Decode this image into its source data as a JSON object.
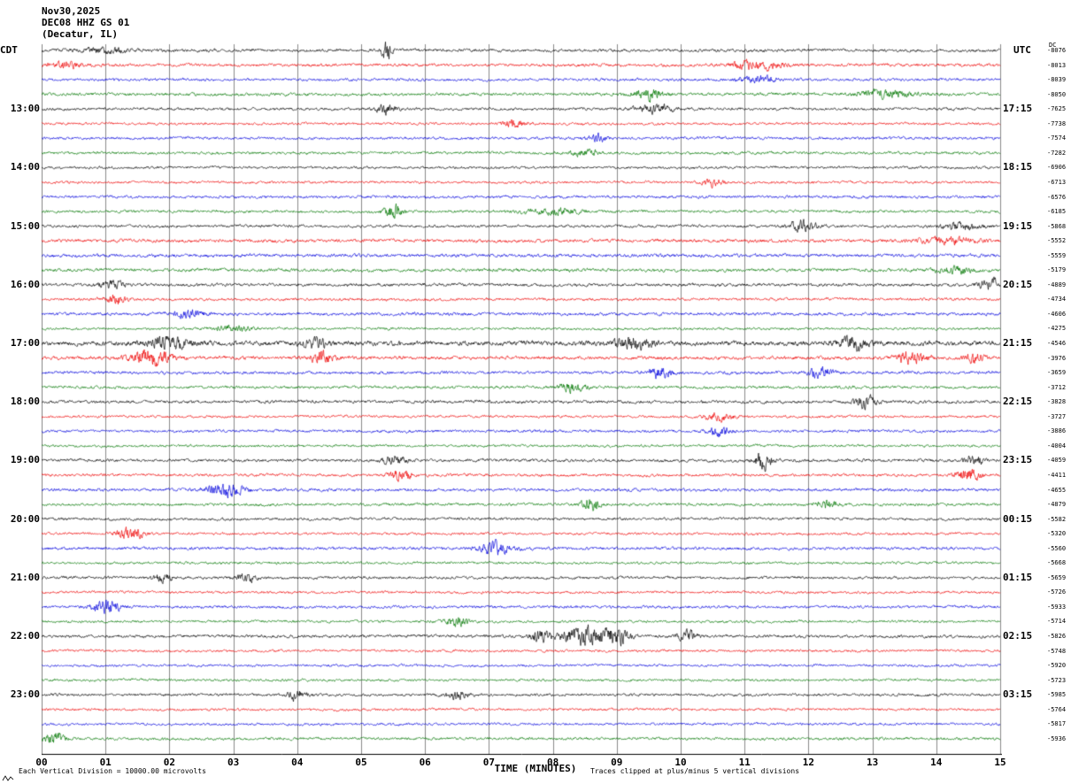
{
  "header": {
    "date": "Nov30,2025",
    "station": "DEC08 HHZ GS 01",
    "location": "(Decatur, IL)"
  },
  "axis": {
    "left_tz": "CDT",
    "right_tz": "UTC",
    "dc_header": "DC",
    "x_title": "TIME (MINUTES)",
    "x_ticks": [
      "00",
      "01",
      "02",
      "03",
      "04",
      "05",
      "06",
      "07",
      "08",
      "09",
      "10",
      "11",
      "12",
      "13",
      "14",
      "15"
    ]
  },
  "footer": {
    "scale_note": "Each Vertical Division = 10000.00 microvolts",
    "clip_note": "Traces clipped at plus/minus 5 vertical divisions"
  },
  "chart_data": {
    "type": "line",
    "subtype": "helicorder",
    "n_rows": 48,
    "minutes_per_row": 15,
    "rows_per_hour": 4,
    "x_range_minutes": [
      0,
      15
    ],
    "grid_on": true,
    "grid_color": "#8a8a8a",
    "row_colors_cycle": [
      "black",
      "red",
      "blue",
      "green"
    ],
    "palette": {
      "black": "#000000",
      "red": "#ee0000",
      "blue": "#0000dd",
      "green": "#007700"
    },
    "hour_labels": [
      {
        "row": 4,
        "cdt": "13:00",
        "utc": "17:15"
      },
      {
        "row": 8,
        "cdt": "14:00",
        "utc": "18:15"
      },
      {
        "row": 12,
        "cdt": "15:00",
        "utc": "19:15"
      },
      {
        "row": 16,
        "cdt": "16:00",
        "utc": "20:15"
      },
      {
        "row": 20,
        "cdt": "17:00",
        "utc": "21:15"
      },
      {
        "row": 24,
        "cdt": "18:00",
        "utc": "22:15"
      },
      {
        "row": 28,
        "cdt": "19:00",
        "utc": "23:15"
      },
      {
        "row": 32,
        "cdt": "20:00",
        "utc": "00:15"
      },
      {
        "row": 36,
        "cdt": "21:00",
        "utc": "01:15"
      },
      {
        "row": 40,
        "cdt": "22:00",
        "utc": "02:15"
      },
      {
        "row": 44,
        "cdt": "23:00",
        "utc": "03:15"
      }
    ],
    "dc_values": [
      "-8076",
      "-8013",
      "-8039",
      "-8050",
      "-7625",
      "-7738",
      "-7574",
      "-7282",
      "-6906",
      "-6713",
      "-6576",
      "-6185",
      "-5868",
      "-5552",
      "-5559",
      "-5179",
      "-4889",
      "-4734",
      "-4606",
      "-4275",
      "-4546",
      "-3976",
      "-3659",
      "-3712",
      "-3828",
      "-3727",
      "-3886",
      "-4004",
      "-4059",
      "-4411",
      "-4655",
      "-4879",
      "-5582",
      "-5320",
      "-5560",
      "-5668",
      "-5659",
      "-5726",
      "-5933",
      "-5714",
      "-5826",
      "-5748",
      "-5920",
      "-5723",
      "-5985",
      "-5764",
      "-5817",
      "-5936"
    ],
    "base_amp": [
      1.2,
      1.2,
      1.1,
      1.2,
      1.1,
      1.0,
      1.1,
      1.1,
      1.0,
      1.0,
      1.1,
      1.1,
      1.1,
      1.35,
      1.35,
      1.3,
      1.2,
      1.1,
      1.2,
      1.0,
      1.9,
      1.4,
      1.2,
      1.1,
      1.2,
      1.0,
      1.1,
      1.0,
      1.2,
      1.1,
      1.2,
      1.1,
      1.1,
      1.0,
      1.2,
      1.0,
      1.1,
      1.0,
      1.1,
      1.0,
      1.2,
      1.0,
      1.0,
      1.0,
      1.1,
      1.0,
      1.0,
      1.1
    ],
    "events": [
      {
        "row": 0,
        "min": 5.4,
        "amp": 9,
        "w": 0.05
      },
      {
        "row": 0,
        "min": 1.0,
        "amp": 2,
        "w": 0.3
      },
      {
        "row": 1,
        "min": 0.4,
        "amp": 2.5,
        "w": 0.2
      },
      {
        "row": 1,
        "min": 11.2,
        "amp": 3.5,
        "w": 0.25
      },
      {
        "row": 2,
        "min": 11.2,
        "amp": 3.2,
        "w": 0.2
      },
      {
        "row": 3,
        "min": 9.5,
        "amp": 4.5,
        "w": 0.15
      },
      {
        "row": 3,
        "min": 13.2,
        "amp": 3,
        "w": 0.3
      },
      {
        "row": 4,
        "min": 5.4,
        "amp": 4,
        "w": 0.1
      },
      {
        "row": 4,
        "min": 9.6,
        "amp": 3.5,
        "w": 0.2
      },
      {
        "row": 5,
        "min": 7.4,
        "amp": 3,
        "w": 0.12
      },
      {
        "row": 6,
        "min": 8.7,
        "amp": 3.5,
        "w": 0.1
      },
      {
        "row": 7,
        "min": 8.5,
        "amp": 3,
        "w": 0.15
      },
      {
        "row": 9,
        "min": 10.5,
        "amp": 3,
        "w": 0.12
      },
      {
        "row": 11,
        "min": 5.5,
        "amp": 5.5,
        "w": 0.1
      },
      {
        "row": 11,
        "min": 8.0,
        "amp": 2.5,
        "w": 0.3
      },
      {
        "row": 12,
        "min": 11.9,
        "amp": 4.5,
        "w": 0.15
      },
      {
        "row": 12,
        "min": 14.4,
        "amp": 3,
        "w": 0.2
      },
      {
        "row": 13,
        "min": 14.2,
        "amp": 2.5,
        "w": 0.3
      },
      {
        "row": 15,
        "min": 14.3,
        "amp": 2.5,
        "w": 0.2
      },
      {
        "row": 16,
        "min": 1.1,
        "amp": 3,
        "w": 0.15
      },
      {
        "row": 16,
        "min": 14.85,
        "amp": 5,
        "w": 0.12
      },
      {
        "row": 17,
        "min": 1.15,
        "amp": 4,
        "w": 0.12
      },
      {
        "row": 18,
        "min": 2.3,
        "amp": 3.5,
        "w": 0.15
      },
      {
        "row": 19,
        "min": 3.0,
        "amp": 2.5,
        "w": 0.2
      },
      {
        "row": 20,
        "min": 2.0,
        "amp": 4,
        "w": 0.25
      },
      {
        "row": 20,
        "min": 4.3,
        "amp": 3.5,
        "w": 0.15
      },
      {
        "row": 20,
        "min": 9.25,
        "amp": 5,
        "w": 0.2
      },
      {
        "row": 20,
        "min": 12.7,
        "amp": 5,
        "w": 0.15
      },
      {
        "row": 21,
        "min": 1.7,
        "amp": 7,
        "w": 0.2
      },
      {
        "row": 21,
        "min": 4.4,
        "amp": 5,
        "w": 0.12
      },
      {
        "row": 21,
        "min": 13.6,
        "amp": 5,
        "w": 0.15
      },
      {
        "row": 21,
        "min": 14.6,
        "amp": 4,
        "w": 0.1
      },
      {
        "row": 22,
        "min": 9.7,
        "amp": 5,
        "w": 0.12
      },
      {
        "row": 22,
        "min": 12.2,
        "amp": 4.5,
        "w": 0.12
      },
      {
        "row": 23,
        "min": 8.3,
        "amp": 3.5,
        "w": 0.15
      },
      {
        "row": 24,
        "min": 12.9,
        "amp": 4.5,
        "w": 0.12
      },
      {
        "row": 25,
        "min": 10.6,
        "amp": 3,
        "w": 0.15
      },
      {
        "row": 26,
        "min": 10.6,
        "amp": 3.5,
        "w": 0.12
      },
      {
        "row": 28,
        "min": 5.5,
        "amp": 3,
        "w": 0.15
      },
      {
        "row": 28,
        "min": 11.3,
        "amp": 6.5,
        "w": 0.1
      },
      {
        "row": 28,
        "min": 14.6,
        "amp": 4,
        "w": 0.1
      },
      {
        "row": 29,
        "min": 5.6,
        "amp": 4,
        "w": 0.12
      },
      {
        "row": 29,
        "min": 14.5,
        "amp": 5.5,
        "w": 0.12
      },
      {
        "row": 30,
        "min": 2.9,
        "amp": 5,
        "w": 0.2
      },
      {
        "row": 31,
        "min": 8.6,
        "amp": 4.5,
        "w": 0.1
      },
      {
        "row": 31,
        "min": 12.3,
        "amp": 3,
        "w": 0.12
      },
      {
        "row": 33,
        "min": 1.4,
        "amp": 4.5,
        "w": 0.15
      },
      {
        "row": 34,
        "min": 7.1,
        "amp": 5,
        "w": 0.2
      },
      {
        "row": 36,
        "min": 1.9,
        "amp": 3.5,
        "w": 0.1
      },
      {
        "row": 36,
        "min": 3.2,
        "amp": 3.5,
        "w": 0.1
      },
      {
        "row": 38,
        "min": 1.0,
        "amp": 5.5,
        "w": 0.15
      },
      {
        "row": 39,
        "min": 6.5,
        "amp": 3.5,
        "w": 0.12
      },
      {
        "row": 40,
        "min": 7.8,
        "amp": 5,
        "w": 0.1
      },
      {
        "row": 40,
        "min": 8.5,
        "amp": 8,
        "w": 0.25
      },
      {
        "row": 40,
        "min": 9.0,
        "amp": 6,
        "w": 0.15
      },
      {
        "row": 40,
        "min": 10.1,
        "amp": 4,
        "w": 0.1
      },
      {
        "row": 44,
        "min": 4.0,
        "amp": 4.5,
        "w": 0.1
      },
      {
        "row": 44,
        "min": 6.5,
        "amp": 3.5,
        "w": 0.12
      },
      {
        "row": 47,
        "min": 0.2,
        "amp": 4.5,
        "w": 0.1
      }
    ]
  }
}
